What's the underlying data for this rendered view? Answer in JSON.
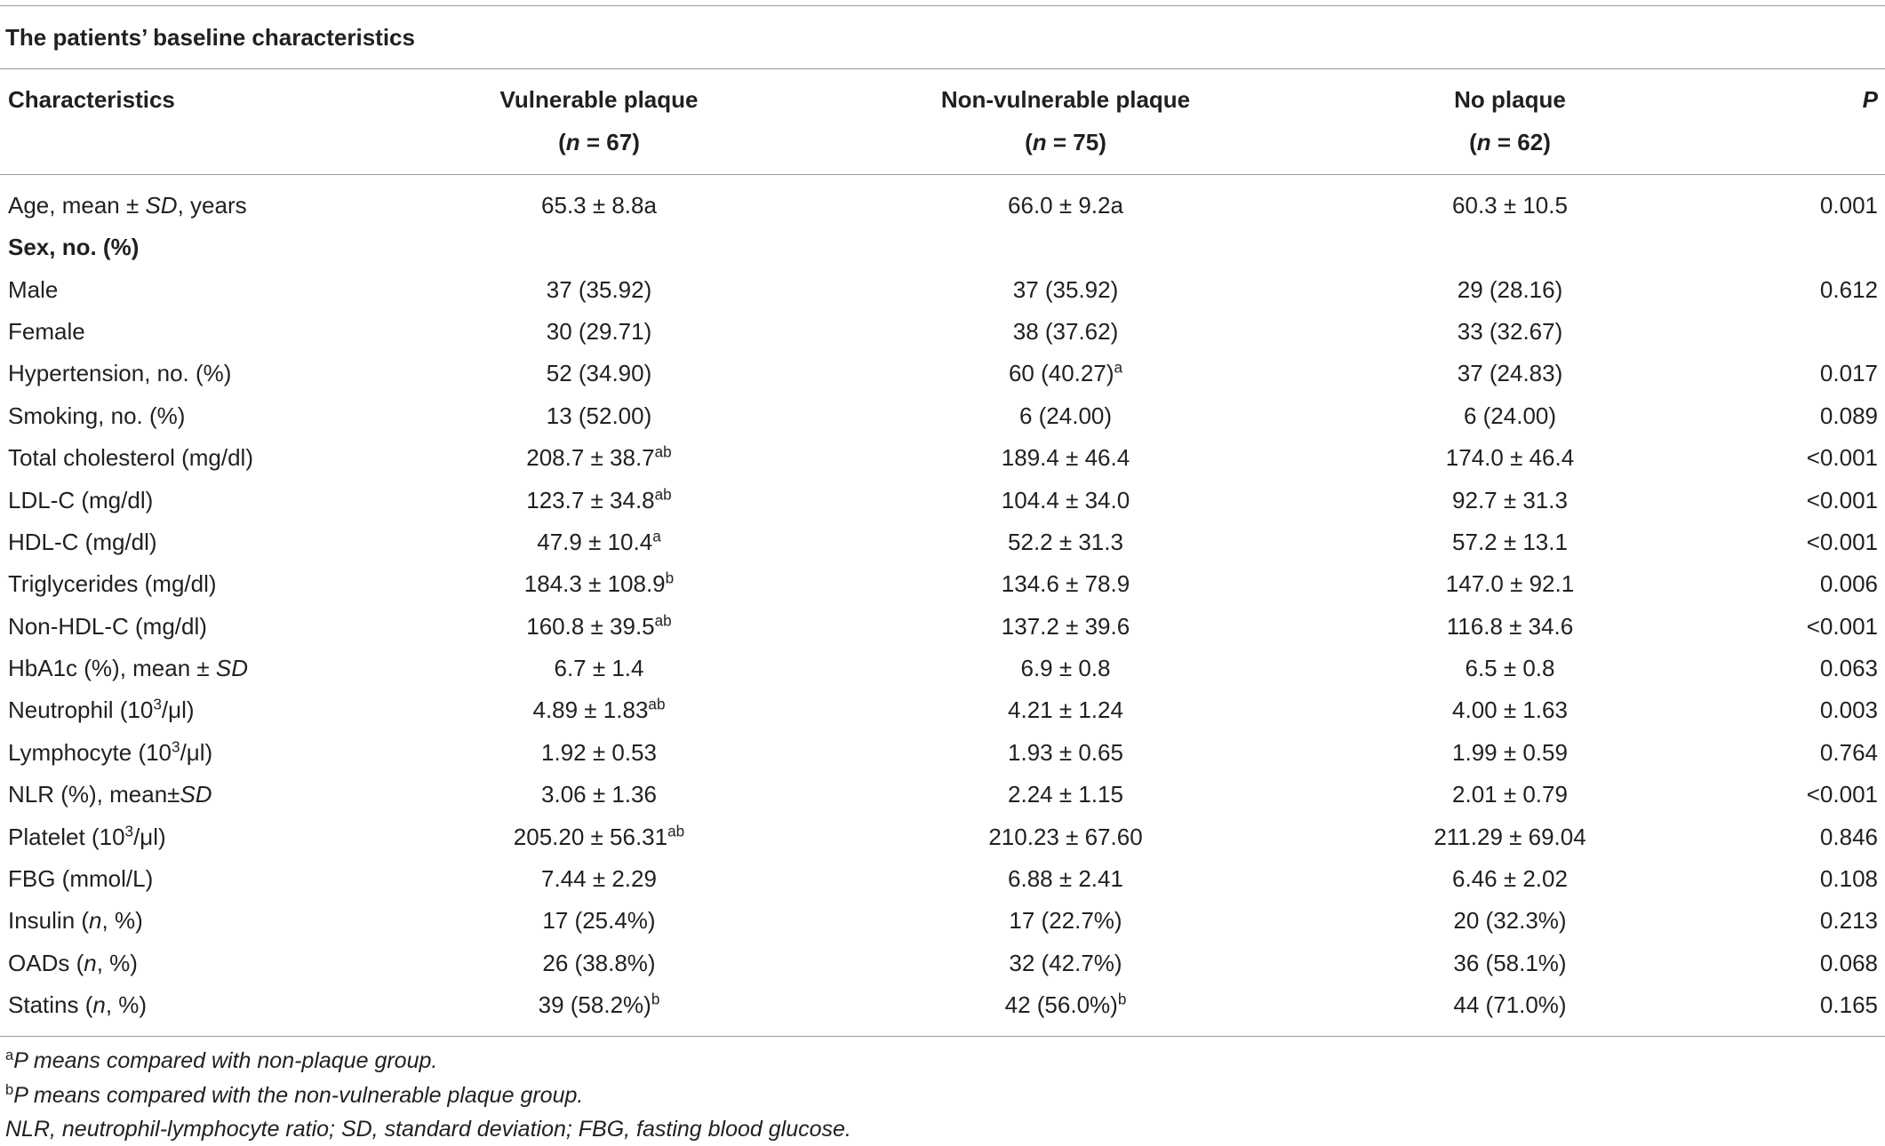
{
  "table": {
    "title": "The patients’ baseline characteristics",
    "header": [
      [
        "Characteristics"
      ],
      [
        "Vulnerable plaque",
        [
          "(",
          {
            "text": "n",
            "style": "italic"
          },
          " = 67)"
        ]
      ],
      [
        "Non-vulnerable plaque",
        [
          "(",
          {
            "text": "n",
            "style": "italic"
          },
          " = 75)"
        ]
      ],
      [
        "No plaque",
        [
          "(",
          {
            "text": "n",
            "style": "italic"
          },
          " = 62)"
        ]
      ],
      [
        [
          {
            "text": "P",
            "style": "italic"
          }
        ]
      ]
    ],
    "rows": [
      {
        "cells": [
          [
            "Age, mean ± ",
            {
              "text": "SD",
              "style": "italic"
            },
            ", years"
          ],
          "65.3 ± 8.8a",
          "66.0 ± 9.2a",
          "60.3 ± 10.5",
          "0.001"
        ]
      },
      {
        "section": "Sex, no. (%)"
      },
      {
        "cells": [
          "Male",
          "37 (35.92)",
          "37 (35.92)",
          "29 (28.16)",
          "0.612"
        ]
      },
      {
        "cells": [
          "Female",
          "30 (29.71)",
          "38 (37.62)",
          "33 (32.67)",
          null
        ]
      },
      {
        "cells": [
          "Hypertension, no. (%)",
          "52 (34.90)",
          [
            "60 (40.27)",
            {
              "text": "a",
              "style": "sup"
            }
          ],
          "37 (24.83)",
          "0.017"
        ]
      },
      {
        "cells": [
          "Smoking, no. (%)",
          "13 (52.00)",
          "6 (24.00)",
          "6 (24.00)",
          "0.089"
        ]
      },
      {
        "cells": [
          "Total cholesterol (mg/dl)",
          [
            "208.7 ± 38.7",
            {
              "text": "ab",
              "style": "sup"
            }
          ],
          "189.4 ± 46.4",
          "174.0 ± 46.4",
          "<0.001"
        ]
      },
      {
        "cells": [
          "LDL-C (mg/dl)",
          [
            "123.7 ± 34.8",
            {
              "text": "ab",
              "style": "sup"
            }
          ],
          "104.4 ± 34.0",
          "92.7 ± 31.3",
          "<0.001"
        ]
      },
      {
        "cells": [
          "HDL-C (mg/dl)",
          [
            "47.9 ± 10.4",
            {
              "text": "a",
              "style": "sup"
            }
          ],
          "52.2 ± 31.3",
          "57.2 ± 13.1",
          "<0.001"
        ]
      },
      {
        "cells": [
          "Triglycerides (mg/dl)",
          [
            "184.3 ± 108.9",
            {
              "text": "b",
              "style": "sup"
            }
          ],
          "134.6 ± 78.9",
          "147.0 ± 92.1",
          "0.006"
        ]
      },
      {
        "cells": [
          "Non-HDL-C (mg/dl)",
          [
            "160.8 ± 39.5",
            {
              "text": "ab",
              "style": "sup"
            }
          ],
          "137.2 ± 39.6",
          "116.8 ± 34.6",
          "<0.001"
        ]
      },
      {
        "cells": [
          [
            "HbA1c (%), mean ± ",
            {
              "text": "SD",
              "style": "italic"
            }
          ],
          "6.7 ± 1.4",
          "6.9 ± 0.8",
          "6.5 ± 0.8",
          "0.063"
        ]
      },
      {
        "cells": [
          [
            "Neutrophil (10",
            {
              "text": "3",
              "style": "sup"
            },
            "/μl)"
          ],
          [
            "4.89 ± 1.83",
            {
              "text": "ab",
              "style": "sup"
            }
          ],
          "4.21 ± 1.24",
          "4.00 ± 1.63",
          "0.003"
        ]
      },
      {
        "cells": [
          [
            "Lymphocyte (10",
            {
              "text": "3",
              "style": "sup"
            },
            "/μl)"
          ],
          "1.92 ± 0.53",
          "1.93 ± 0.65",
          "1.99 ± 0.59",
          "0.764"
        ]
      },
      {
        "cells": [
          [
            "NLR (%), mean±",
            {
              "text": "SD",
              "style": "italic"
            }
          ],
          "3.06 ± 1.36",
          "2.24 ± 1.15",
          "2.01 ± 0.79",
          "<0.001"
        ]
      },
      {
        "cells": [
          [
            "Platelet (10",
            {
              "text": "3",
              "style": "sup"
            },
            "/μl)"
          ],
          [
            "205.20 ± 56.31",
            {
              "text": "ab",
              "style": "sup"
            }
          ],
          "210.23 ± 67.60",
          "211.29 ± 69.04",
          "0.846"
        ]
      },
      {
        "cells": [
          "FBG (mmol/L)",
          "7.44 ± 2.29",
          "6.88 ± 2.41",
          "6.46 ± 2.02",
          "0.108"
        ]
      },
      {
        "cells": [
          [
            "Insulin (",
            {
              "text": "n",
              "style": "italic"
            },
            ", %)"
          ],
          "17 (25.4%)",
          "17 (22.7%)",
          "20 (32.3%)",
          "0.213"
        ]
      },
      {
        "cells": [
          [
            "OADs (",
            {
              "text": "n",
              "style": "italic"
            },
            ", %)"
          ],
          "26 (38.8%)",
          "32 (42.7%)",
          "36 (58.1%)",
          "0.068"
        ]
      },
      {
        "cells": [
          [
            "Statins (",
            {
              "text": "n",
              "style": "italic"
            },
            ", %)"
          ],
          [
            "39 (58.2%)",
            {
              "text": "b",
              "style": "sup"
            }
          ],
          [
            "42 (56.0%)",
            {
              "text": "b",
              "style": "sup"
            }
          ],
          "44 (71.0%)",
          "0.165"
        ]
      }
    ],
    "footnotes": [
      [
        {
          "text": "a",
          "style": "sup"
        },
        {
          "text": "P means compared with non-plaque group.",
          "style": "italic"
        }
      ],
      [
        {
          "text": "b",
          "style": "sup"
        },
        {
          "text": "P means compared with the non-vulnerable plaque group.",
          "style": "italic"
        }
      ],
      [
        {
          "text": "NLR, neutrophil-lymphocyte ratio; SD, standard deviation; FBG, fasting blood glucose.",
          "style": "italic"
        }
      ]
    ]
  }
}
